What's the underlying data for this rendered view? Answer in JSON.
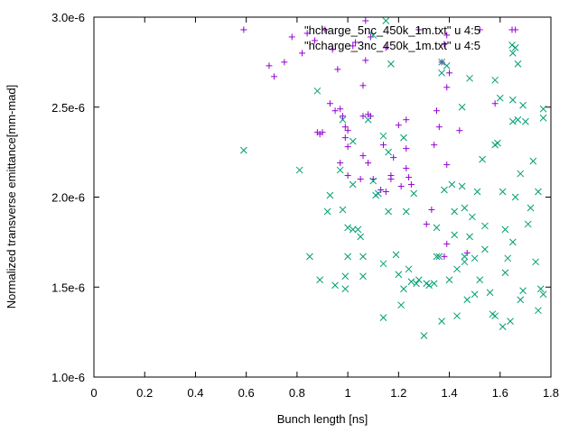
{
  "chart_data": {
    "type": "scatter",
    "title": "",
    "xlabel": "Bunch length [ns]",
    "ylabel": "Normalized transverse emittance[mm-mad]",
    "xlim": [
      0,
      1.8
    ],
    "ylim": [
      1e-06,
      3e-06
    ],
    "xticks": [
      {
        "value": 0,
        "label": "0"
      },
      {
        "value": 0.2,
        "label": "0.2"
      },
      {
        "value": 0.4,
        "label": "0.4"
      },
      {
        "value": 0.6,
        "label": "0.6"
      },
      {
        "value": 0.8,
        "label": "0.8"
      },
      {
        "value": 1.0,
        "label": "1"
      },
      {
        "value": 1.2,
        "label": "1.2"
      },
      {
        "value": 1.4,
        "label": "1.4"
      },
      {
        "value": 1.6,
        "label": "1.6"
      },
      {
        "value": 1.8,
        "label": "1.8"
      }
    ],
    "yticks": [
      {
        "value": 1e-06,
        "label": "1.0e-6"
      },
      {
        "value": 1.5e-06,
        "label": "1.5e-6"
      },
      {
        "value": 2e-06,
        "label": "2.0e-6"
      },
      {
        "value": 2.5e-06,
        "label": "2.5e-6"
      },
      {
        "value": 3e-06,
        "label": "3.0e-6"
      }
    ],
    "legend_position": "top-right",
    "series": [
      {
        "name": "\"hcharge_5nc_450k_1m.txt\" u 4:5",
        "marker": "plus",
        "color": "#9400d3",
        "points": [
          [
            0.59,
            2.93e-06
          ],
          [
            0.69,
            2.73e-06
          ],
          [
            0.71,
            2.67e-06
          ],
          [
            0.75,
            2.75e-06
          ],
          [
            0.78,
            2.89e-06
          ],
          [
            0.82,
            2.8e-06
          ],
          [
            0.84,
            2.91e-06
          ],
          [
            0.87,
            2.87e-06
          ],
          [
            0.88,
            2.36e-06
          ],
          [
            0.89,
            2.35e-06
          ],
          [
            0.9,
            2.36e-06
          ],
          [
            0.91,
            2.93e-06
          ],
          [
            0.93,
            2.52e-06
          ],
          [
            0.94,
            2.82e-06
          ],
          [
            0.95,
            2.48e-06
          ],
          [
            0.96,
            2.71e-06
          ],
          [
            0.97,
            2.19e-06
          ],
          [
            0.97,
            2.49e-06
          ],
          [
            0.98,
            2.45e-06
          ],
          [
            0.99,
            2.39e-06
          ],
          [
            0.99,
            2.33e-06
          ],
          [
            1.0,
            2.28e-06
          ],
          [
            1.0,
            2.12e-06
          ],
          [
            1.0,
            2.37e-06
          ],
          [
            1.02,
            2.84e-06
          ],
          [
            1.03,
            2.86e-06
          ],
          [
            1.05,
            2.1e-06
          ],
          [
            1.06,
            2.45e-06
          ],
          [
            1.06,
            2.62e-06
          ],
          [
            1.06,
            2.23e-06
          ],
          [
            1.07,
            2.76e-06
          ],
          [
            1.07,
            2.98e-06
          ],
          [
            1.08,
            2.19e-06
          ],
          [
            1.08,
            2.46e-06
          ],
          [
            1.09,
            2.45e-06
          ],
          [
            1.09,
            2.89e-06
          ],
          [
            1.1,
            2.1e-06
          ],
          [
            1.13,
            2.04e-06
          ],
          [
            1.14,
            2.29e-06
          ],
          [
            1.15,
            2.03e-06
          ],
          [
            1.15,
            2.83e-06
          ],
          [
            1.17,
            2.1e-06
          ],
          [
            1.17,
            2.12e-06
          ],
          [
            1.18,
            2.22e-06
          ],
          [
            1.2,
            2.4e-06
          ],
          [
            1.21,
            2.06e-06
          ],
          [
            1.23,
            2.43e-06
          ],
          [
            1.23,
            2.16e-06
          ],
          [
            1.23,
            2.27e-06
          ],
          [
            1.24,
            2.11e-06
          ],
          [
            1.25,
            2.07e-06
          ],
          [
            1.28,
            2.93e-06
          ],
          [
            1.31,
            1.85e-06
          ],
          [
            1.33,
            1.93e-06
          ],
          [
            1.34,
            2.29e-06
          ],
          [
            1.35,
            2.48e-06
          ],
          [
            1.36,
            2.39e-06
          ],
          [
            1.37,
            2.75e-06
          ],
          [
            1.38,
            2.85e-06
          ],
          [
            1.39,
            2.61e-06
          ],
          [
            1.4,
            2.69e-06
          ],
          [
            1.39,
            1.74e-06
          ],
          [
            1.39,
            2.18e-06
          ],
          [
            1.39,
            2.9e-06
          ],
          [
            1.44,
            2.37e-06
          ],
          [
            1.47,
            1.69e-06
          ],
          [
            1.58,
            2.52e-06
          ],
          [
            1.66,
            2.93e-06
          ],
          [
            1.38,
            1.67e-06
          ],
          [
            1.52,
            2.93e-06
          ]
        ]
      },
      {
        "name": "\"hcharge_3nc_450k_1m.txt\" u 4:5",
        "marker": "cross",
        "color": "#009e73",
        "points": [
          [
            0.59,
            2.26e-06
          ],
          [
            0.81,
            2.15e-06
          ],
          [
            0.85,
            1.67e-06
          ],
          [
            0.88,
            2.59e-06
          ],
          [
            0.89,
            1.54e-06
          ],
          [
            0.92,
            1.92e-06
          ],
          [
            0.93,
            2.01e-06
          ],
          [
            0.95,
            1.51e-06
          ],
          [
            0.97,
            2.15e-06
          ],
          [
            0.98,
            2.43e-06
          ],
          [
            0.98,
            1.93e-06
          ],
          [
            0.99,
            1.56e-06
          ],
          [
            0.99,
            1.49e-06
          ],
          [
            1.0,
            1.67e-06
          ],
          [
            1.0,
            1.83e-06
          ],
          [
            1.02,
            2.31e-06
          ],
          [
            1.02,
            2.07e-06
          ],
          [
            1.02,
            1.82e-06
          ],
          [
            1.04,
            1.82e-06
          ],
          [
            1.05,
            1.78e-06
          ],
          [
            1.06,
            1.67e-06
          ],
          [
            1.06,
            1.56e-06
          ],
          [
            1.08,
            2.43e-06
          ],
          [
            1.1,
            2.9e-06
          ],
          [
            1.1,
            2.09e-06
          ],
          [
            1.11,
            2.01e-06
          ],
          [
            1.12,
            2.02e-06
          ],
          [
            1.14,
            2.34e-06
          ],
          [
            1.14,
            1.63e-06
          ],
          [
            1.14,
            1.33e-06
          ],
          [
            1.15,
            2.98e-06
          ],
          [
            1.16,
            2.25e-06
          ],
          [
            1.16,
            1.92e-06
          ],
          [
            1.17,
            2.74e-06
          ],
          [
            1.19,
            1.68e-06
          ],
          [
            1.2,
            1.57e-06
          ],
          [
            1.21,
            1.4e-06
          ],
          [
            1.22,
            2.33e-06
          ],
          [
            1.22,
            1.49e-06
          ],
          [
            1.23,
            1.92e-06
          ],
          [
            1.24,
            1.6e-06
          ],
          [
            1.25,
            1.53e-06
          ],
          [
            1.26,
            2.02e-06
          ],
          [
            1.27,
            1.52e-06
          ],
          [
            1.28,
            1.54e-06
          ],
          [
            1.3,
            1.23e-06
          ],
          [
            1.31,
            1.52e-06
          ],
          [
            1.32,
            1.51e-06
          ],
          [
            1.34,
            1.52e-06
          ],
          [
            1.35,
            1.83e-06
          ],
          [
            1.35,
            1.67e-06
          ],
          [
            1.36,
            1.67e-06
          ],
          [
            1.37,
            1.31e-06
          ],
          [
            1.37,
            2.69e-06
          ],
          [
            1.37,
            2.75e-06
          ],
          [
            1.38,
            2.04e-06
          ],
          [
            1.39,
            2.73e-06
          ],
          [
            1.4,
            1.54e-06
          ],
          [
            1.41,
            2.07e-06
          ],
          [
            1.42,
            1.92e-06
          ],
          [
            1.42,
            1.79e-06
          ],
          [
            1.43,
            1.34e-06
          ],
          [
            1.43,
            1.6e-06
          ],
          [
            1.45,
            2.5e-06
          ],
          [
            1.45,
            2.06e-06
          ],
          [
            1.46,
            1.94e-06
          ],
          [
            1.46,
            1.67e-06
          ],
          [
            1.46,
            1.64e-06
          ],
          [
            1.47,
            1.43e-06
          ],
          [
            1.48,
            1.78e-06
          ],
          [
            1.48,
            2.66e-06
          ],
          [
            1.49,
            1.89e-06
          ],
          [
            1.5,
            1.46e-06
          ],
          [
            1.5,
            1.66e-06
          ],
          [
            1.51,
            2.03e-06
          ],
          [
            1.52,
            1.54e-06
          ],
          [
            1.53,
            2.21e-06
          ],
          [
            1.54,
            1.84e-06
          ],
          [
            1.56,
            1.47e-06
          ],
          [
            1.57,
            1.35e-06
          ],
          [
            1.58,
            1.34e-06
          ],
          [
            1.58,
            2.29e-06
          ],
          [
            1.58,
            2.65e-06
          ],
          [
            1.59,
            2.3e-06
          ],
          [
            1.6,
            2.55e-06
          ],
          [
            1.61,
            1.28e-06
          ],
          [
            1.61,
            2.03e-06
          ],
          [
            1.62,
            1.82e-06
          ],
          [
            1.62,
            1.58e-06
          ],
          [
            1.63,
            1.66e-06
          ],
          [
            1.64,
            1.31e-06
          ],
          [
            1.65,
            2.42e-06
          ],
          [
            1.65,
            2.54e-06
          ],
          [
            1.65,
            1.75e-06
          ],
          [
            1.65,
            2.8e-06
          ],
          [
            1.66,
            2.83e-06
          ],
          [
            1.66,
            2e-06
          ],
          [
            1.67,
            2.74e-06
          ],
          [
            1.67,
            2.43e-06
          ],
          [
            1.68,
            2.13e-06
          ],
          [
            1.68,
            1.43e-06
          ],
          [
            1.69,
            1.48e-06
          ],
          [
            1.69,
            2.51e-06
          ],
          [
            1.7,
            2.42e-06
          ],
          [
            1.71,
            1.85e-06
          ],
          [
            1.73,
            2.2e-06
          ],
          [
            1.74,
            1.64e-06
          ],
          [
            1.75,
            1.37e-06
          ],
          [
            1.75,
            2.03e-06
          ],
          [
            1.76,
            1.49e-06
          ],
          [
            1.77,
            2.49e-06
          ],
          [
            1.77,
            2.44e-06
          ],
          [
            1.77,
            1.46e-06
          ],
          [
            1.72,
            1.94e-06
          ],
          [
            1.54,
            1.71e-06
          ]
        ]
      }
    ]
  }
}
